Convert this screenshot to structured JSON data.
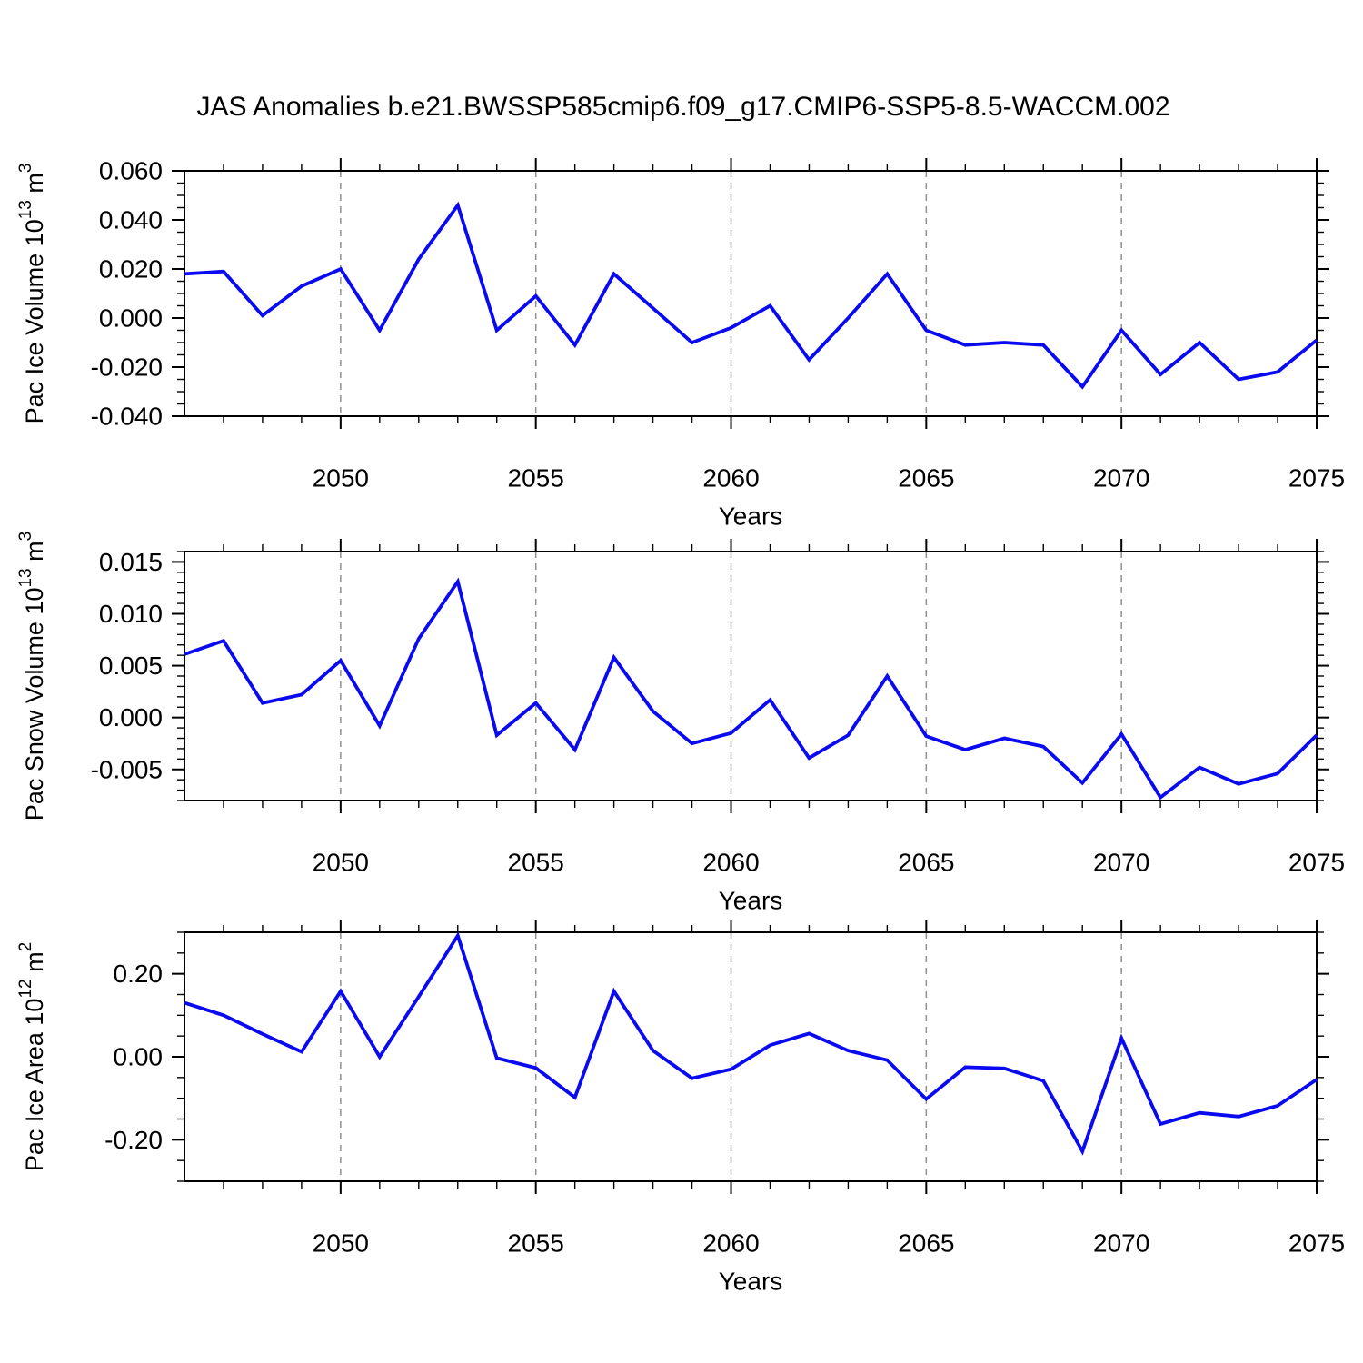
{
  "title": "JAS Anomalies b.e21.BWSSP585cmip6.f09_g17.CMIP6-SSP5-8.5-WACCM.002",
  "colors": {
    "line": "#0A0AF0",
    "grid": "#909090",
    "axis": "#000000",
    "text": "#000000",
    "background": "#FFFFFF"
  },
  "x_axis": {
    "label": "Years",
    "range": [
      2046,
      2075
    ],
    "major_ticks": [
      2050,
      2055,
      2060,
      2065,
      2070,
      2075
    ],
    "major_tick_labels": [
      "2050",
      "2055",
      "2060",
      "2065",
      "2070",
      "2075"
    ],
    "minor_step": 1,
    "gridlines": [
      2050,
      2055,
      2060,
      2065,
      2070
    ]
  },
  "chart_data": [
    {
      "type": "line",
      "name": "pac-ice-volume",
      "ylabel": "Pac Ice Volume 10^13 m^3",
      "ylabel_parts": [
        [
          "Pac Ice Volume 10",
          false
        ],
        [
          "13",
          true
        ],
        [
          " m",
          false
        ],
        [
          "3",
          true
        ]
      ],
      "xlabel": "Years",
      "legend": null,
      "grid": "vertical-dashed",
      "x": [
        2046,
        2047,
        2048,
        2049,
        2050,
        2051,
        2052,
        2053,
        2054,
        2055,
        2056,
        2057,
        2058,
        2059,
        2060,
        2061,
        2062,
        2063,
        2064,
        2065,
        2066,
        2067,
        2068,
        2069,
        2070,
        2071,
        2072,
        2073,
        2074,
        2075
      ],
      "values": [
        0.018,
        0.019,
        0.001,
        0.013,
        0.02,
        -0.005,
        0.024,
        0.046,
        -0.005,
        0.009,
        -0.011,
        0.018,
        0.004,
        -0.01,
        -0.004,
        0.005,
        -0.017,
        0.0,
        0.018,
        -0.005,
        -0.011,
        -0.01,
        -0.011,
        -0.028,
        -0.005,
        -0.023,
        -0.01,
        -0.025,
        -0.022,
        -0.009
      ],
      "ylim": [
        -0.04,
        0.06
      ],
      "yticks": [
        0.06,
        0.04,
        0.02,
        0.0,
        -0.02,
        -0.04
      ],
      "ytick_labels": [
        "0.060",
        "0.040",
        "0.020",
        "0.000",
        "-0.020",
        "-0.040"
      ],
      "yminor_step": 0.005
    },
    {
      "type": "line",
      "name": "pac-snow-volume",
      "ylabel": "Pac Snow Volume 10^13 m^3",
      "ylabel_parts": [
        [
          "Pac Snow Volume 10",
          false
        ],
        [
          "13",
          true
        ],
        [
          " m",
          false
        ],
        [
          "3",
          true
        ]
      ],
      "xlabel": "Years",
      "legend": null,
      "grid": "vertical-dashed",
      "x": [
        2046,
        2047,
        2048,
        2049,
        2050,
        2051,
        2052,
        2053,
        2054,
        2055,
        2056,
        2057,
        2058,
        2059,
        2060,
        2061,
        2062,
        2063,
        2064,
        2065,
        2066,
        2067,
        2068,
        2069,
        2070,
        2071,
        2072,
        2073,
        2074,
        2075
      ],
      "values": [
        0.0061,
        0.0074,
        0.0014,
        0.0022,
        0.0055,
        -0.0008,
        0.0076,
        0.0131,
        -0.0017,
        0.0014,
        -0.0031,
        0.0058,
        0.0006,
        -0.0025,
        -0.0015,
        0.0017,
        -0.0039,
        -0.0017,
        0.004,
        -0.0018,
        -0.0031,
        -0.002,
        -0.0028,
        -0.0063,
        -0.0016,
        -0.0077,
        -0.0048,
        -0.0064,
        -0.0054,
        -0.0017
      ],
      "ylim": [
        -0.008,
        0.016
      ],
      "yticks": [
        0.015,
        0.01,
        0.005,
        0.0,
        -0.005
      ],
      "ytick_labels": [
        "0.015",
        "0.010",
        "0.005",
        "0.000",
        "-0.005"
      ],
      "yminor_step": 0.001
    },
    {
      "type": "line",
      "name": "pac-ice-area",
      "ylabel": "Pac Ice Area 10^12 m^2",
      "ylabel_parts": [
        [
          "Pac Ice Area 10",
          false
        ],
        [
          "12",
          true
        ],
        [
          " m",
          false
        ],
        [
          "2",
          true
        ]
      ],
      "xlabel": "Years",
      "legend": null,
      "grid": "vertical-dashed",
      "x": [
        2046,
        2047,
        2048,
        2049,
        2050,
        2051,
        2052,
        2053,
        2054,
        2055,
        2056,
        2057,
        2058,
        2059,
        2060,
        2061,
        2062,
        2063,
        2064,
        2065,
        2066,
        2067,
        2068,
        2069,
        2070,
        2071,
        2072,
        2073,
        2074,
        2075
      ],
      "values": [
        0.13,
        0.1,
        0.055,
        0.012,
        0.158,
        0.0,
        0.145,
        0.292,
        -0.003,
        -0.027,
        -0.098,
        0.158,
        0.015,
        -0.052,
        -0.03,
        0.028,
        0.056,
        0.015,
        -0.008,
        -0.102,
        -0.025,
        -0.028,
        -0.058,
        -0.228,
        0.045,
        -0.162,
        -0.135,
        -0.144,
        -0.118,
        -0.055
      ],
      "ylim": [
        -0.3,
        0.3
      ],
      "yticks": [
        0.2,
        0.0,
        -0.2
      ],
      "ytick_labels": [
        "0.20",
        "0.00",
        "-0.20"
      ],
      "yminor_step": 0.05
    }
  ]
}
